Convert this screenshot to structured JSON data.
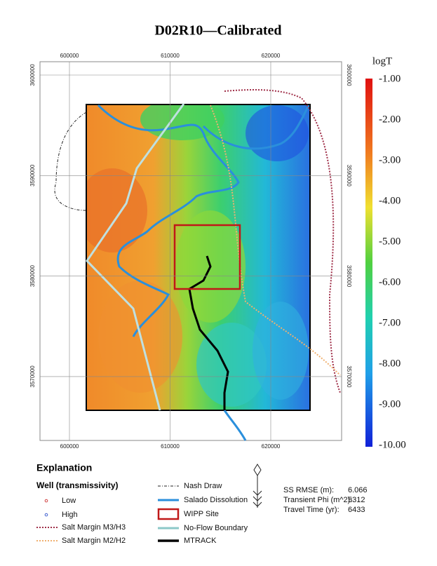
{
  "title": "D02R10—Calibrated",
  "map": {
    "x_ticks": [
      "600000",
      "610000",
      "620000"
    ],
    "y_ticks": [
      "3600000",
      "3590000",
      "3580000",
      "3570000"
    ]
  },
  "colorbar": {
    "title": "logT",
    "ticks": [
      "-1.00",
      "-2.00",
      "-3.00",
      "-4.00",
      "-5.00",
      "-6.00",
      "-7.00",
      "-8.00",
      "-9.00",
      "-10.00"
    ]
  },
  "legend": {
    "heading": "Explanation",
    "wells_heading": "Well (transmissivity)",
    "items": [
      "Low",
      "High",
      "Salt Margin M3/H3",
      "Salt Margin M2/H2",
      "Nash Draw",
      "Salado Dissolution",
      "WIPP Site",
      "No-Flow Boundary",
      "MTRACK"
    ]
  },
  "stats": [
    {
      "label": "SS RMSE (m):",
      "value": "6.066"
    },
    {
      "label": "Transient Phi (m^2):",
      "value": "5312"
    },
    {
      "label": "Travel Time (yr):",
      "value": "6433"
    }
  ]
}
